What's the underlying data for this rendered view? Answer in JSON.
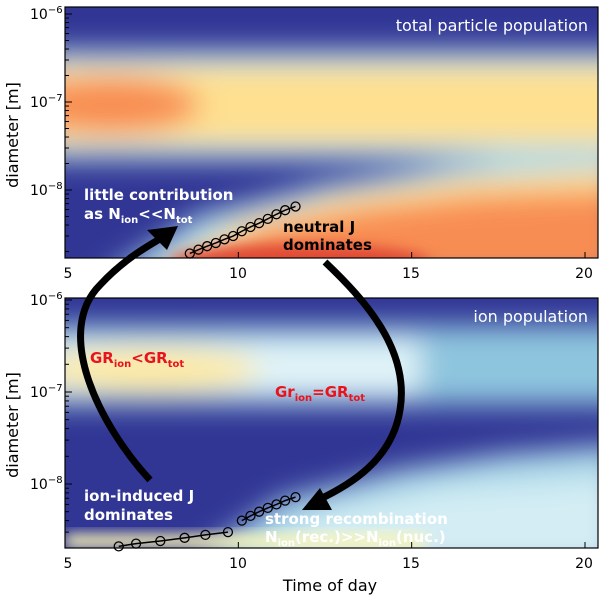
{
  "chart_data": [
    {
      "type": "heatmap",
      "title": "total particle population",
      "xlabel": "",
      "ylabel": "diameter [m]",
      "xlim": [
        5,
        20
      ],
      "ylim": [
        1.7e-09,
        1e-06
      ],
      "yscale": "log",
      "xticks": [
        "5",
        "10",
        "15",
        "20"
      ],
      "yticks": [
        {
          "base": "10",
          "exp": "−6"
        },
        {
          "base": "10",
          "exp": "−7"
        },
        {
          "base": "10",
          "exp": "−8"
        }
      ],
      "colormap": [
        "#313695",
        "#abd9e9",
        "#ffffbf",
        "#fdae61",
        "#f46d43",
        "#d73027"
      ],
      "series": [
        {
          "x": [
            8.6,
            8.85,
            9.1,
            9.35,
            9.6,
            9.85,
            10.1,
            10.35,
            10.6,
            10.85,
            11.1,
            11.35,
            11.65
          ],
          "y": [
            1.9e-09,
            2.1e-09,
            2.3e-09,
            2.5e-09,
            2.75e-09,
            3e-09,
            3.4e-09,
            3.8e-09,
            4.2e-09,
            4.7e-09,
            5.3e-09,
            5.9e-09,
            6.5e-09
          ]
        }
      ],
      "annotations": {
        "little_contribution": {
          "line1": "little contribution",
          "l2a": "as N",
          "l2b": "ion",
          "l2c": "<<N",
          "l2d": "tot"
        },
        "neutral": {
          "line1": "neutral J",
          "line2": "dominates"
        }
      }
    },
    {
      "type": "heatmap",
      "title": "ion population",
      "xlabel": "Time of day",
      "ylabel": "diameter [m]",
      "xlim": [
        5,
        20
      ],
      "ylim": [
        1.7e-09,
        1e-06
      ],
      "yscale": "log",
      "xticks": [
        "5",
        "10",
        "15",
        "20"
      ],
      "yticks": [
        {
          "base": "10",
          "exp": "−6"
        },
        {
          "base": "10",
          "exp": "−7"
        },
        {
          "base": "10",
          "exp": "−8"
        }
      ],
      "series": [
        {
          "x": [
            6.55,
            7.05,
            7.75,
            8.45,
            9.05,
            9.7
          ],
          "y": [
            2.1e-09,
            2.25e-09,
            2.4e-09,
            2.6e-09,
            2.8e-09,
            3e-09
          ]
        },
        {
          "x": [
            10.1,
            10.35,
            10.6,
            10.85,
            11.1,
            11.35,
            11.65
          ],
          "y": [
            4e-09,
            4.5e-09,
            5e-09,
            5.5e-09,
            6e-09,
            6.6e-09,
            7.2e-09
          ]
        }
      ],
      "annotations": {
        "gr_ion_lt": {
          "a": "GR",
          "b": "ion",
          "c": "<GR",
          "d": "tot"
        },
        "gr_ion_eq": {
          "a": "Gr",
          "b": "ion",
          "c": "=GR",
          "d": "tot"
        },
        "ion_induced": {
          "line1": "ion-induced J",
          "line2": "dominates"
        },
        "recombination": {
          "line1": "strong recombination",
          "a": "N",
          "b": "ion",
          "c": "(rec.)>>N",
          "d": "ion",
          "e": "(nuc.)"
        }
      }
    }
  ]
}
